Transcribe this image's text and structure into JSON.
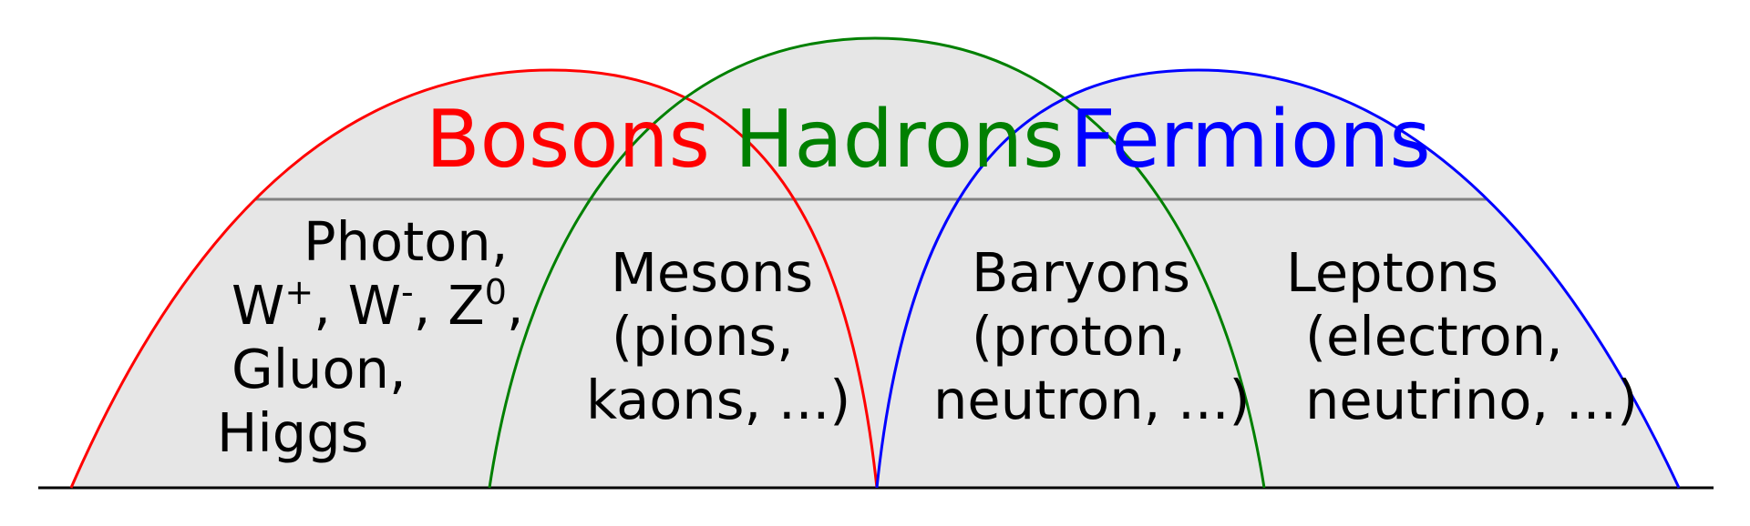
{
  "colors": {
    "bosons": "#ff0000",
    "hadrons": "#008000",
    "fermions": "#0000ff",
    "fill": "#e6e6e6",
    "divider": "#808080",
    "baseline": "#000000"
  },
  "titles": {
    "bosons": "Bosons",
    "hadrons": "Hadrons",
    "fermions": "Fermions"
  },
  "bosons_list": {
    "line1": "Photon,",
    "w": "W",
    "w_plus": "+",
    "w_sep": ", W",
    "w_minus": "-",
    "z_sep": ", Z",
    "z_sup": "0",
    "z_comma": ",",
    "line3": "Gluon,",
    "line4": "Higgs"
  },
  "mesons": {
    "line1": "Mesons",
    "line2": "(pions,",
    "line3": "kaons, ...)"
  },
  "baryons": {
    "line1": "Baryons",
    "line2": "(proton,",
    "line3": "neutron, ...)"
  },
  "leptons": {
    "line1": "Leptons",
    "line2": "(electron,",
    "line3": "neutrino, ...)"
  }
}
